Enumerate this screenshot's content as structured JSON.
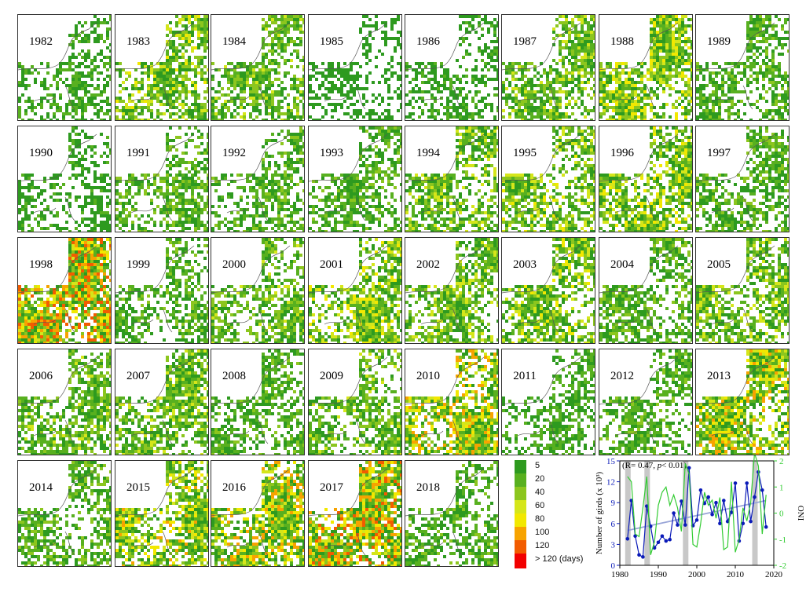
{
  "panels": [
    "1982",
    "1983",
    "1984",
    "1985",
    "1986",
    "1987",
    "1988",
    "1989",
    "1990",
    "1991",
    "1992",
    "1993",
    "1994",
    "1995",
    "1996",
    "1997",
    "1998",
    "1999",
    "2000",
    "2001",
    "2002",
    "2003",
    "2004",
    "2005",
    "2006",
    "2007",
    "2008",
    "2009",
    "2010",
    "2011",
    "2012",
    "2013",
    "2014",
    "2015",
    "2016",
    "2017",
    "2018"
  ],
  "panel_intensity": [
    0.25,
    0.55,
    0.45,
    0.15,
    0.2,
    0.5,
    0.6,
    0.35,
    0.2,
    0.4,
    0.35,
    0.35,
    0.5,
    0.55,
    0.6,
    0.4,
    0.9,
    0.35,
    0.45,
    0.6,
    0.5,
    0.55,
    0.4,
    0.5,
    0.45,
    0.5,
    0.35,
    0.45,
    0.75,
    0.3,
    0.35,
    0.7,
    0.4,
    0.65,
    0.7,
    0.85,
    0.35
  ],
  "colors": {
    "levels": [
      "#2e9a1f",
      "#58b01f",
      "#8cc61e",
      "#d5e61a",
      "#f2e800",
      "#f7a300",
      "#f25c00",
      "#f20000"
    ],
    "blue": "#0a1ab8",
    "green": "#33cc33",
    "trend": "#9aa6d8",
    "elnino_bar": "#c8c8c8"
  },
  "legend": {
    "labels": [
      "5",
      "20",
      "40",
      "60",
      "80",
      "100",
      "120",
      "> 120 (days)"
    ]
  },
  "chart_data": {
    "type": "line",
    "annotation_prefix": "(R= 0.47, ",
    "annotation_p": "p",
    "annotation_suffix": "< 0.01)",
    "ylabel": "Number of girds (x 10³)",
    "y2label": "ONI",
    "xlim": [
      1980,
      2020
    ],
    "xticks": [
      1980,
      1990,
      2000,
      2010,
      2020
    ],
    "ylim": [
      0,
      15
    ],
    "yticks": [
      0,
      3,
      6,
      9,
      12,
      15
    ],
    "y2lim": [
      -2,
      2
    ],
    "y2ticks": [
      -2,
      -1,
      0,
      1,
      2
    ],
    "elnino_years": [
      1982,
      1987,
      1997,
      2015
    ],
    "series": [
      {
        "axis": "left",
        "x": [
          1982,
          1983,
          1984,
          1985,
          1986,
          1987,
          1988,
          1989,
          1990,
          1991,
          1992,
          1993,
          1994,
          1995,
          1996,
          1997,
          1998,
          1999,
          2000,
          2001,
          2002,
          2003,
          2004,
          2005,
          2006,
          2007,
          2008,
          2009,
          2010,
          2011,
          2012,
          2013,
          2014,
          2015,
          2016,
          2017,
          2018
        ],
        "values": [
          3.8,
          9.3,
          4.2,
          1.5,
          1.2,
          8.5,
          5.6,
          2.5,
          3.3,
          4.2,
          3.5,
          3.7,
          7.5,
          5.8,
          9.2,
          5.8,
          14.0,
          5.7,
          6.5,
          10.8,
          8.9,
          9.8,
          7.3,
          9.0,
          6.0,
          9.3,
          6.3,
          7.6,
          11.8,
          3.5,
          6.0,
          11.8,
          6.3,
          9.8,
          13.4,
          10.8,
          5.5
        ]
      },
      {
        "axis": "right",
        "x": [
          1982,
          1983,
          1984,
          1985,
          1986,
          1987,
          1988,
          1989,
          1990,
          1991,
          1992,
          1993,
          1994,
          1995,
          1996,
          1997,
          1998,
          1999,
          2000,
          2001,
          2002,
          2003,
          2004,
          2005,
          2006,
          2007,
          2008,
          2009,
          2010,
          2011,
          2012,
          2013,
          2014,
          2015,
          2016,
          2017,
          2018
        ],
        "values": [
          1.4,
          1.2,
          -0.8,
          -0.9,
          0.2,
          1.4,
          -1.6,
          -1.1,
          0.3,
          0.8,
          1.0,
          0.3,
          0.7,
          0.2,
          -0.7,
          1.9,
          1.5,
          -1.2,
          -1.3,
          -0.4,
          0.8,
          0.3,
          0.5,
          -0.2,
          0.6,
          -1.4,
          -1.3,
          1.2,
          -1.5,
          -1.0,
          0.2,
          -0.3,
          0.4,
          2.3,
          1.8,
          -0.8,
          0.7
        ]
      }
    ],
    "trend": {
      "x": [
        1982,
        2018
      ],
      "values": [
        5.0,
        9.3
      ]
    }
  }
}
